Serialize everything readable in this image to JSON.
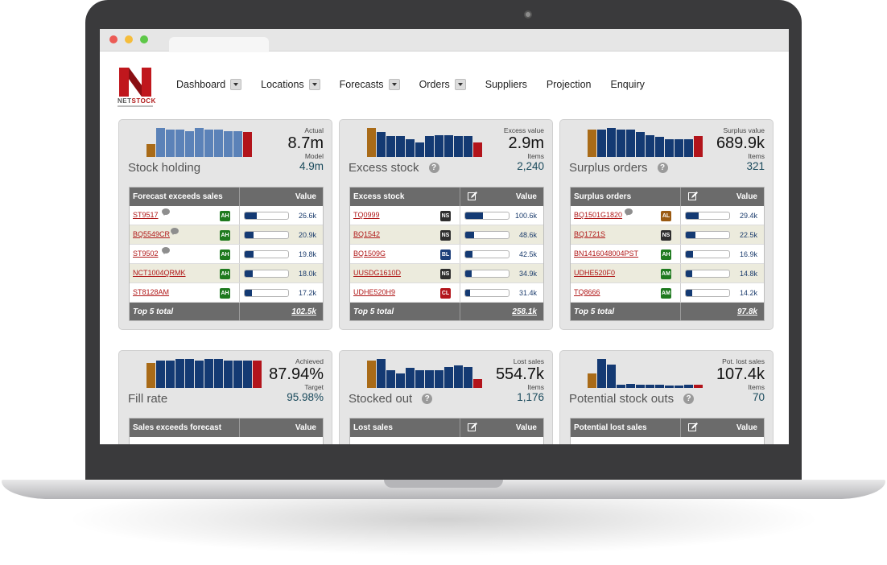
{
  "colors": {
    "brand_red": "#b01818",
    "navy": "#143a73",
    "brown": "#a96b18",
    "red_bar": "#b2141b",
    "badge_green": "#1f7a1f",
    "badge_dark": "#2e2e2e",
    "badge_blue": "#1c3f7a",
    "badge_brown": "#9a5a12",
    "badge_red": "#b3151b"
  },
  "logo": {
    "word_a": "NET",
    "word_b": "STOCK"
  },
  "nav": [
    {
      "label": "Dashboard",
      "has_menu": true
    },
    {
      "label": "Locations",
      "has_menu": true
    },
    {
      "label": "Forecasts",
      "has_menu": true
    },
    {
      "label": "Orders",
      "has_menu": true
    },
    {
      "label": "Suppliers",
      "has_menu": false
    },
    {
      "label": "Projection",
      "has_menu": false
    },
    {
      "label": "Enquiry",
      "has_menu": false
    }
  ],
  "panels": [
    {
      "title": "Stock holding",
      "help": false,
      "kpi": {
        "label1": "Actual",
        "value1": "8.7m",
        "label2": "Model",
        "value2": "4.9m"
      },
      "spark": {
        "style": "light",
        "bars": [
          0.45,
          1.0,
          0.95,
          0.95,
          0.9,
          1.0,
          0.95,
          0.95,
          0.9,
          0.9,
          0.85
        ]
      },
      "table": {
        "header": "Forecast exceeds sales",
        "value_header": "Value",
        "edit": false,
        "rows": [
          {
            "code": "ST9517",
            "comment": true,
            "badge": "AH",
            "badge_color": "#1f7a1f",
            "fill": 0.27,
            "value": "26.6k"
          },
          {
            "code": "BQ5549CR",
            "comment": true,
            "badge": "AH",
            "badge_color": "#1f7a1f",
            "fill": 0.21,
            "value": "20.9k"
          },
          {
            "code": "ST9502",
            "comment": true,
            "badge": "AH",
            "badge_color": "#1f7a1f",
            "fill": 0.2,
            "value": "19.8k"
          },
          {
            "code": "NCT1004QRMK",
            "comment": false,
            "badge": "AH",
            "badge_color": "#1f7a1f",
            "fill": 0.18,
            "value": "18.0k"
          },
          {
            "code": "ST8128AM",
            "comment": false,
            "badge": "AH",
            "badge_color": "#1f7a1f",
            "fill": 0.17,
            "value": "17.2k"
          }
        ],
        "footer_label": "Top 5 total",
        "footer_value": "102.5k"
      }
    },
    {
      "title": "Excess stock",
      "help": true,
      "kpi": {
        "label1": "Excess value",
        "value1": "2.9m",
        "label2": "Items",
        "value2": "2,240"
      },
      "spark": {
        "style": "dark",
        "bars": [
          1.0,
          0.85,
          0.72,
          0.72,
          0.6,
          0.5,
          0.72,
          0.75,
          0.75,
          0.72,
          0.72,
          0.5
        ]
      },
      "table": {
        "header": "Excess stock",
        "value_header": "Value",
        "edit": true,
        "rows": [
          {
            "code": "TQ0999",
            "comment": false,
            "badge": "NS",
            "badge_color": "#2e2e2e",
            "fill": 0.4,
            "value": "100.6k"
          },
          {
            "code": "BQ1542",
            "comment": false,
            "badge": "NS",
            "badge_color": "#2e2e2e",
            "fill": 0.2,
            "value": "48.6k"
          },
          {
            "code": "BQ1509G",
            "comment": false,
            "badge": "BL",
            "badge_color": "#1c3f7a",
            "fill": 0.17,
            "value": "42.5k"
          },
          {
            "code": "UUSDG1610D",
            "comment": false,
            "badge": "NS",
            "badge_color": "#2e2e2e",
            "fill": 0.14,
            "value": "34.9k"
          },
          {
            "code": "UDHE520H9",
            "comment": false,
            "badge": "CL",
            "badge_color": "#b3151b",
            "fill": 0.12,
            "value": "31.4k"
          }
        ],
        "footer_label": "Top 5 total",
        "footer_value": "258.1k"
      }
    },
    {
      "title": "Surplus orders",
      "help": true,
      "kpi": {
        "label1": "Surplus value",
        "value1": "689.9k",
        "label2": "Items",
        "value2": "321"
      },
      "spark": {
        "style": "dark",
        "bars": [
          0.95,
          0.95,
          1.0,
          0.95,
          0.95,
          0.85,
          0.75,
          0.7,
          0.6,
          0.6,
          0.6,
          0.72
        ]
      },
      "table": {
        "header": "Surplus orders",
        "value_header": "Value",
        "edit": true,
        "rows": [
          {
            "code": "BQ1501G1820",
            "comment": true,
            "badge": "AL",
            "badge_color": "#9a5a12",
            "fill": 0.3,
            "value": "29.4k"
          },
          {
            "code": "BQ1721S",
            "comment": false,
            "badge": "NS",
            "badge_color": "#2e2e2e",
            "fill": 0.23,
            "value": "22.5k"
          },
          {
            "code": "BN1416048004PST",
            "comment": false,
            "badge": "AH",
            "badge_color": "#1f7a1f",
            "fill": 0.17,
            "value": "16.9k"
          },
          {
            "code": "UDHE520F0",
            "comment": false,
            "badge": "AM",
            "badge_color": "#1f7a1f",
            "fill": 0.15,
            "value": "14.8k"
          },
          {
            "code": "TQ8666",
            "comment": false,
            "badge": "AM",
            "badge_color": "#1f7a1f",
            "fill": 0.14,
            "value": "14.2k"
          }
        ],
        "footer_label": "Top 5 total",
        "footer_value": "97.8k"
      }
    },
    {
      "title": "Fill rate",
      "help": false,
      "kpi": {
        "label1": "Achieved",
        "value1": "87.94%",
        "label2": "Target",
        "value2": "95.98%"
      },
      "spark": {
        "style": "dark",
        "bars": [
          0.85,
          0.95,
          0.95,
          1.0,
          1.0,
          0.95,
          1.0,
          1.0,
          0.95,
          0.95,
          0.95,
          0.95
        ]
      },
      "table": {
        "header": "Sales exceeds forecast",
        "value_header": "Value",
        "edit": false,
        "rows": [],
        "footer_label": "",
        "footer_value": ""
      }
    },
    {
      "title": "Stocked out",
      "help": true,
      "kpi": {
        "label1": "Lost sales",
        "value1": "554.7k",
        "label2": "Items",
        "value2": "1,176"
      },
      "spark": {
        "style": "dark",
        "bars": [
          0.95,
          1.0,
          0.6,
          0.5,
          0.7,
          0.6,
          0.6,
          0.6,
          0.72,
          0.78,
          0.72,
          0.3
        ]
      },
      "table": {
        "header": "Lost sales",
        "value_header": "Value",
        "edit": true,
        "rows": [],
        "footer_label": "",
        "footer_value": ""
      }
    },
    {
      "title": "Potential stock outs",
      "help": true,
      "kpi": {
        "label1": "Pot. lost sales",
        "value1": "107.4k",
        "label2": "Items",
        "value2": "70"
      },
      "spark": {
        "style": "dark",
        "bars": [
          0.5,
          1.0,
          0.8,
          0.1,
          0.15,
          0.12,
          0.1,
          0.1,
          0.08,
          0.08,
          0.1,
          0.12
        ]
      },
      "table": {
        "header": "Potential lost sales",
        "value_header": "Value",
        "edit": true,
        "rows": [],
        "footer_label": "",
        "footer_value": ""
      }
    }
  ]
}
